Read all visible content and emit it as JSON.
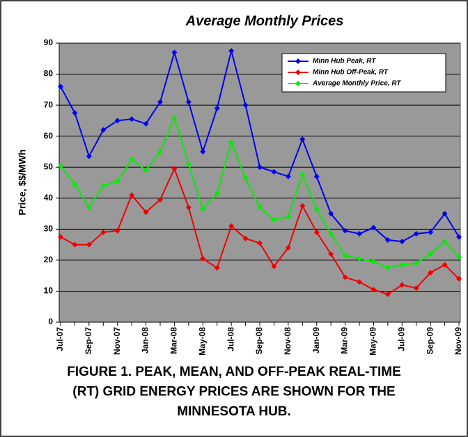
{
  "chart_data": {
    "type": "line",
    "title": "Average Monthly Prices",
    "y_label": "Price, $$/MWh",
    "categories": [
      "Jul-07",
      null,
      "Sep-07",
      null,
      "Nov-07",
      null,
      "Jan-08",
      null,
      "Mar-08",
      null,
      "May-08",
      null,
      "Jul-08",
      null,
      "Sep-08",
      null,
      "Nov-08",
      null,
      "Jan-09",
      null,
      "Mar-09",
      null,
      "May-09",
      null,
      "Jul-09",
      null,
      "Sep-09",
      null,
      "Nov-09"
    ],
    "series": [
      {
        "name": "Minn Hub Peak, RT",
        "color": "#0000ee",
        "values": [
          76,
          67.5,
          53.5,
          62,
          65,
          65.5,
          64,
          71,
          87,
          71,
          55,
          69,
          87.5,
          70,
          50,
          48.5,
          47,
          59,
          47,
          35,
          29.5,
          28.5,
          30.5,
          26.5,
          26,
          28.5,
          29,
          35,
          27.5
        ]
      },
      {
        "name": "Minn Hub Off-Peak, RT",
        "color": "#ee0000",
        "values": [
          27.5,
          25,
          25,
          29,
          29.5,
          41,
          35.5,
          39.5,
          49.5,
          37,
          20.5,
          17.5,
          31,
          27,
          25.5,
          18,
          24,
          37.5,
          29,
          22,
          14.5,
          13,
          10.5,
          9,
          12,
          11,
          16,
          18.5,
          14
        ]
      },
      {
        "name": "Average Monthly Price, RT",
        "color": "#00ee00",
        "values": [
          50.5,
          44.5,
          37,
          44,
          45.5,
          52.5,
          49,
          55,
          66,
          51,
          36.5,
          41.5,
          58,
          46.5,
          37,
          33,
          34,
          47.5,
          36.5,
          28.5,
          21.5,
          20.5,
          19.5,
          17.5,
          18.5,
          19,
          22,
          26,
          21
        ]
      }
    ],
    "ylim": [
      0,
      90
    ],
    "yticks": [
      0,
      10,
      20,
      30,
      40,
      50,
      60,
      70,
      80,
      90
    ],
    "grid": true,
    "legend": "top-right",
    "plot_background": "#999999",
    "caption": [
      "FIGURE 1.  PEAK, MEAN, AND OFF-PEAK REAL-TIME",
      "(RT) GRID ENERGY PRICES ARE SHOWN FOR THE",
      "MINNESOTA HUB."
    ]
  }
}
